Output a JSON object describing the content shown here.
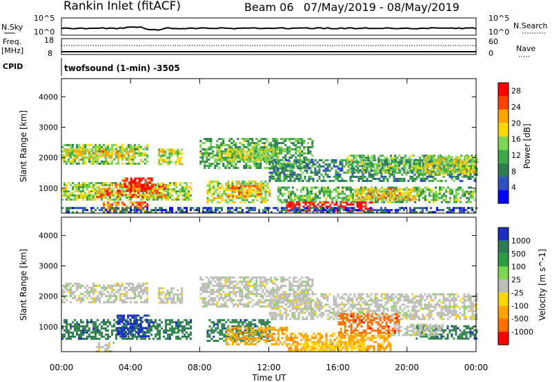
{
  "header": {
    "station": "Rankin Inlet (fitACF)",
    "beam": "Beam 06",
    "date_range": "07/May/2019 - 08/May/2019"
  },
  "noise_panel": {
    "left_label": "N.Sky",
    "left_ticks": [
      "10^5",
      "10^0"
    ],
    "right_label": "N.Search",
    "right_ticks": [
      "10^5",
      "10^0"
    ]
  },
  "freq_panel": {
    "left_label_1": "Freq.",
    "left_label_2": "[MHz]",
    "left_ticks": [
      "18",
      "8"
    ],
    "right_label": "Nave",
    "right_ticks": [
      "60",
      "0"
    ]
  },
  "cpid": {
    "label": "CPID",
    "value": "twofsound (1-min) -3505"
  },
  "colors": {
    "power": [
      "#0000ff",
      "#3050c0",
      "#2e7d50",
      "#3ea84a",
      "#7fd650",
      "#ffd700",
      "#ffa500",
      "#ff4500",
      "#ff0000"
    ],
    "velocity": [
      "#1a2fbf",
      "#2e7d50",
      "#2e9d40",
      "#7fd650",
      "#bebeb8",
      "#ffd700",
      "#ffa500",
      "#ff7000",
      "#ff0000"
    ]
  },
  "chart_data": [
    {
      "type": "heatmap",
      "name": "power",
      "title": "",
      "xlabel": "",
      "ylabel": "Slant Range [km]",
      "xlim": [
        "00:00",
        "24:00"
      ],
      "ylim": [
        180,
        4600
      ],
      "yticks": [
        "1000",
        "2000",
        "3000",
        "4000"
      ],
      "colorbar_label": "Power [dB]",
      "colorbar_ticks": [
        "4",
        "8",
        "12",
        "16",
        "20",
        "24",
        "28"
      ],
      "colorbar_range": [
        0,
        30
      ],
      "bands": [
        {
          "t0": 0.0,
          "t1": 5.0,
          "r0": 1800,
          "r1": 2450,
          "v": 14
        },
        {
          "t0": 0.2,
          "t1": 4.2,
          "r0": 2000,
          "r1": 2300,
          "v": 19
        },
        {
          "t0": 0.0,
          "t1": 7.5,
          "r0": 620,
          "r1": 1200,
          "v": 15
        },
        {
          "t0": 2.0,
          "t1": 6.0,
          "r0": 700,
          "r1": 1150,
          "v": 23
        },
        {
          "t0": 3.5,
          "t1": 5.2,
          "r0": 900,
          "r1": 1350,
          "v": 27
        },
        {
          "t0": 2.4,
          "t1": 5.0,
          "r0": 220,
          "r1": 560,
          "v": 24
        },
        {
          "t0": 5.6,
          "t1": 7.0,
          "r0": 1800,
          "r1": 2300,
          "v": 17
        },
        {
          "t0": 8.0,
          "t1": 14.5,
          "r0": 1650,
          "r1": 2650,
          "v": 12
        },
        {
          "t0": 9.0,
          "t1": 12.5,
          "r0": 1900,
          "r1": 2300,
          "v": 16
        },
        {
          "t0": 8.4,
          "t1": 12.0,
          "r0": 560,
          "r1": 1250,
          "v": 16
        },
        {
          "t0": 9.5,
          "t1": 11.5,
          "r0": 750,
          "r1": 1100,
          "v": 22
        },
        {
          "t0": 12.0,
          "t1": 24.0,
          "r0": 1250,
          "r1": 1950,
          "v": 9
        },
        {
          "t0": 16.5,
          "t1": 24.0,
          "r0": 1550,
          "r1": 2100,
          "v": 13
        },
        {
          "t0": 21.0,
          "t1": 24.0,
          "r0": 1450,
          "r1": 2050,
          "v": 17
        },
        {
          "t0": 12.5,
          "t1": 24.0,
          "r0": 550,
          "r1": 1050,
          "v": 13
        },
        {
          "t0": 17.0,
          "t1": 20.5,
          "r0": 650,
          "r1": 1000,
          "v": 20
        },
        {
          "t0": 13.0,
          "t1": 18.0,
          "r0": 240,
          "r1": 560,
          "v": 29
        },
        {
          "t0": 0.0,
          "t1": 24.0,
          "r0": 190,
          "r1": 380,
          "v": 6
        }
      ]
    },
    {
      "type": "heatmap",
      "name": "velocity",
      "title": "",
      "xlabel": "Time UT",
      "ylabel": "Slant Range [km]",
      "xlim": [
        "00:00",
        "24:00"
      ],
      "ylim": [
        180,
        4600
      ],
      "xticks": [
        "00:00",
        "04:00",
        "08:00",
        "12:00",
        "16:00",
        "20:00",
        "00:00"
      ],
      "yticks": [
        "1000",
        "2000",
        "3000",
        "4000"
      ],
      "colorbar_label": "Velocity [m s^-1]",
      "colorbar_ticks": [
        "1000",
        "500",
        "100",
        "25",
        "-25",
        "-100",
        "-500",
        "-1000"
      ],
      "bands": [
        {
          "t0": 0.0,
          "t1": 5.0,
          "r0": 1800,
          "r1": 2450,
          "c": 4
        },
        {
          "t0": 5.6,
          "t1": 7.0,
          "r0": 1800,
          "r1": 2300,
          "c": 4
        },
        {
          "t0": 8.0,
          "t1": 14.5,
          "r0": 1650,
          "r1": 2650,
          "c": 4
        },
        {
          "t0": 12.0,
          "t1": 24.0,
          "r0": 1250,
          "r1": 2100,
          "c": 4
        },
        {
          "t0": 0.0,
          "t1": 7.5,
          "r0": 620,
          "r1": 1250,
          "c": 1
        },
        {
          "t0": 3.2,
          "t1": 5.0,
          "r0": 700,
          "r1": 1400,
          "c": 0
        },
        {
          "t0": 2.0,
          "t1": 3.0,
          "r0": 200,
          "r1": 500,
          "c": 4
        },
        {
          "t0": 8.4,
          "t1": 12.0,
          "r0": 560,
          "r1": 1250,
          "c": 1
        },
        {
          "t0": 9.5,
          "t1": 13.0,
          "r0": 450,
          "r1": 1000,
          "c": 6
        },
        {
          "t0": 13.0,
          "t1": 19.0,
          "r0": 230,
          "r1": 800,
          "c": 6
        },
        {
          "t0": 14.0,
          "t1": 17.5,
          "r0": 230,
          "r1": 520,
          "c": 5
        },
        {
          "t0": 16.0,
          "t1": 19.5,
          "r0": 800,
          "r1": 1450,
          "c": 7
        },
        {
          "t0": 20.5,
          "t1": 24.0,
          "r0": 600,
          "r1": 1050,
          "c": 1
        },
        {
          "t0": 19.0,
          "t1": 22.0,
          "r0": 700,
          "r1": 1100,
          "c": 4
        }
      ]
    }
  ]
}
